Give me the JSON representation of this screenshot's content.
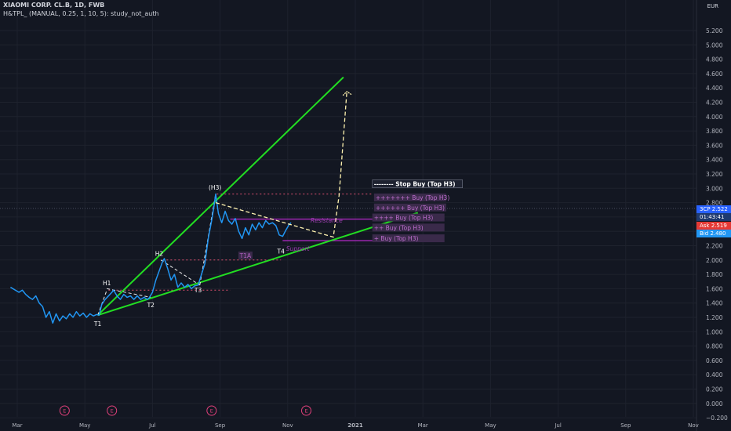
{
  "header": {
    "symbol": "XIAOMI CORP. CL.B, 1D, FWB",
    "study": "H&TPL_ (MANUAL, 0.25, 1, 10, 5): study_not_auth"
  },
  "price_axis": {
    "currency": "EUR",
    "last_label": "3CP",
    "last_value": "2.522",
    "countdown": "01:43:41",
    "ask_label": "Ask",
    "ask_value": "2.519",
    "bid_label": "Bid",
    "bid_value": "2.480"
  },
  "colors": {
    "background": "#131722",
    "price_line": "#2196f3",
    "trend_lines": "#22dd22",
    "projection": "#fff3b0",
    "levels": "#b04a8a",
    "purple": "#9c27b0",
    "dotted_red": "#e05070",
    "label_bg": "#3a2a4a"
  },
  "chart_data": {
    "type": "line",
    "ylim": [
      -0.2,
      5.4
    ],
    "yticks": [
      -0.2,
      0,
      0.2,
      0.4,
      0.6,
      0.8,
      1.0,
      1.2,
      1.4,
      1.6,
      1.8,
      2.0,
      2.2,
      2.4,
      2.6,
      2.8,
      3.0,
      3.2,
      3.4,
      3.6,
      3.8,
      4.0,
      4.2,
      4.4,
      4.6,
      4.8,
      5.0,
      5.2
    ],
    "ytick_labels": [
      "−0.200",
      "0.000",
      "0.200",
      "0.400",
      "0.600",
      "0.800",
      "1.000",
      "1.200",
      "1.400",
      "1.600",
      "1.800",
      "2.000",
      "2.200",
      "2.400",
      "2.600",
      "2.800",
      "3.000",
      "3.200",
      "3.400",
      "3.600",
      "3.800",
      "4.000",
      "4.200",
      "4.400",
      "4.600",
      "4.800",
      "5.000",
      "5.200"
    ],
    "xticks": [
      "Mar",
      "May",
      "Jul",
      "Sep",
      "Nov",
      "2021",
      "Mar",
      "May",
      "Jul",
      "Sep",
      "Nov"
    ],
    "xtick_months": [
      0,
      2,
      4,
      6,
      8,
      10,
      12,
      14,
      16,
      18,
      20
    ],
    "series": [
      {
        "points": [
          [
            -0.2,
            1.62
          ],
          [
            0.05,
            1.55
          ],
          [
            0.15,
            1.58
          ],
          [
            0.25,
            1.52
          ],
          [
            0.35,
            1.48
          ],
          [
            0.45,
            1.45
          ],
          [
            0.55,
            1.5
          ],
          [
            0.65,
            1.4
          ],
          [
            0.75,
            1.35
          ],
          [
            0.85,
            1.2
          ],
          [
            0.95,
            1.28
          ],
          [
            1.05,
            1.12
          ],
          [
            1.15,
            1.25
          ],
          [
            1.25,
            1.15
          ],
          [
            1.35,
            1.22
          ],
          [
            1.45,
            1.18
          ],
          [
            1.55,
            1.25
          ],
          [
            1.65,
            1.2
          ],
          [
            1.75,
            1.28
          ],
          [
            1.85,
            1.22
          ],
          [
            1.95,
            1.26
          ],
          [
            2.05,
            1.2
          ],
          [
            2.15,
            1.25
          ],
          [
            2.25,
            1.22
          ],
          [
            2.35,
            1.24
          ],
          [
            2.42,
            1.23
          ],
          [
            2.5,
            1.38
          ],
          [
            2.6,
            1.45
          ],
          [
            2.7,
            1.5
          ],
          [
            2.8,
            1.55
          ],
          [
            2.85,
            1.58
          ],
          [
            2.95,
            1.5
          ],
          [
            3.05,
            1.45
          ],
          [
            3.15,
            1.52
          ],
          [
            3.25,
            1.48
          ],
          [
            3.35,
            1.5
          ],
          [
            3.45,
            1.45
          ],
          [
            3.55,
            1.5
          ],
          [
            3.65,
            1.45
          ],
          [
            3.75,
            1.48
          ],
          [
            3.85,
            1.45
          ],
          [
            3.9,
            1.47
          ],
          [
            4.0,
            1.55
          ],
          [
            4.1,
            1.72
          ],
          [
            4.2,
            1.85
          ],
          [
            4.3,
            1.98
          ],
          [
            4.35,
            2.02
          ],
          [
            4.45,
            1.88
          ],
          [
            4.55,
            1.72
          ],
          [
            4.65,
            1.8
          ],
          [
            4.75,
            1.62
          ],
          [
            4.85,
            1.68
          ],
          [
            4.95,
            1.62
          ],
          [
            5.05,
            1.66
          ],
          [
            5.15,
            1.6
          ],
          [
            5.25,
            1.64
          ],
          [
            5.35,
            1.65
          ],
          [
            5.45,
            1.8
          ],
          [
            5.55,
            1.95
          ],
          [
            5.65,
            2.3
          ],
          [
            5.75,
            2.55
          ],
          [
            5.82,
            2.75
          ],
          [
            5.87,
            2.92
          ],
          [
            5.95,
            2.65
          ],
          [
            6.05,
            2.52
          ],
          [
            6.15,
            2.68
          ],
          [
            6.25,
            2.55
          ],
          [
            6.35,
            2.5
          ],
          [
            6.45,
            2.58
          ],
          [
            6.55,
            2.4
          ],
          [
            6.65,
            2.3
          ],
          [
            6.75,
            2.45
          ],
          [
            6.85,
            2.35
          ],
          [
            6.95,
            2.5
          ],
          [
            7.05,
            2.42
          ],
          [
            7.15,
            2.52
          ],
          [
            7.25,
            2.45
          ],
          [
            7.35,
            2.55
          ],
          [
            7.45,
            2.5
          ],
          [
            7.55,
            2.52
          ],
          [
            7.65,
            2.48
          ],
          [
            7.75,
            2.35
          ],
          [
            7.85,
            2.33
          ],
          [
            7.95,
            2.42
          ],
          [
            8.05,
            2.5
          ],
          [
            8.1,
            2.52
          ]
        ]
      }
    ],
    "annotations": [
      {
        "text": "H1",
        "x": 2.65,
        "y": 1.65,
        "color": "#ffffff"
      },
      {
        "text": "H2",
        "x": 4.2,
        "y": 2.06,
        "color": "#ffffff"
      },
      {
        "text": "(H3)",
        "x": 5.85,
        "y": 2.98,
        "color": "#ffffff"
      },
      {
        "text": "T1",
        "x": 2.38,
        "y": 1.08,
        "color": "#ffffff"
      },
      {
        "text": "T2",
        "x": 3.95,
        "y": 1.34,
        "color": "#ffffff"
      },
      {
        "text": "T3",
        "x": 5.35,
        "y": 1.55,
        "color": "#ffffff"
      },
      {
        "text": "T4",
        "x": 7.8,
        "y": 2.09,
        "color": "#ffffff"
      },
      {
        "text": "T1A",
        "x": 6.75,
        "y": 2.03,
        "color": "#b060c0",
        "box": true
      },
      {
        "text": "Resistance",
        "x": 9.15,
        "y": 2.52,
        "color": "#9c3fb0"
      },
      {
        "text": "Support",
        "x": 8.3,
        "y": 2.13,
        "color": "#9c3fb0"
      }
    ],
    "level_labels": [
      {
        "text": "-------- Stop Buy (Top H3)",
        "x": 10.55,
        "y": 3.03,
        "bright": true
      },
      {
        "text": "+++++++ Buy (Top H3)",
        "x": 10.6,
        "y": 2.84,
        "bright": false
      },
      {
        "text": "++++++ Buy (Top H3)",
        "x": 10.6,
        "y": 2.7,
        "bright": false
      },
      {
        "text": "++++ Buy (Top H3)",
        "x": 10.55,
        "y": 2.56,
        "bright": false
      },
      {
        "text": "++ Buy (Top H3)",
        "x": 10.55,
        "y": 2.42,
        "bright": false
      },
      {
        "text": "+ Buy (Top H3)",
        "x": 10.55,
        "y": 2.27,
        "bright": false
      }
    ],
    "trend_lines": [
      [
        [
          2.38,
          1.23
        ],
        [
          9.65,
          4.55
        ]
      ],
      [
        [
          2.38,
          1.23
        ],
        [
          11.85,
          2.66
        ]
      ]
    ],
    "projection": [
      [
        5.87,
        2.8
      ],
      [
        9.35,
        2.32
      ],
      [
        9.52,
        2.9
      ],
      [
        9.75,
        4.35
      ]
    ],
    "levels": {
      "resistance": 2.57,
      "support": 2.27,
      "stop": 2.92,
      "h1": 1.58,
      "h2": 2.0
    },
    "earnings_markers": [
      {
        "x": 1.4,
        "label": "E"
      },
      {
        "x": 2.8,
        "label": "E"
      },
      {
        "x": 5.75,
        "label": "E"
      },
      {
        "x": 8.55,
        "label": "E"
      }
    ]
  }
}
